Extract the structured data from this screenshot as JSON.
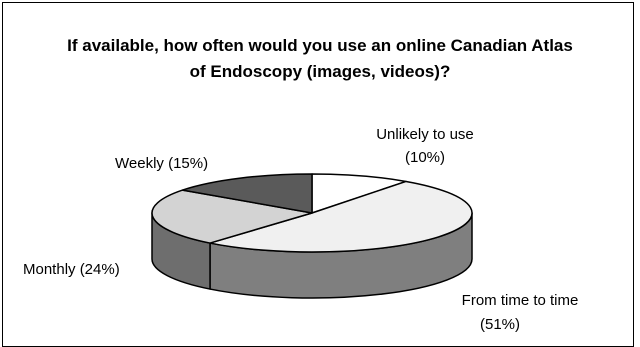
{
  "chart_data": {
    "type": "pie",
    "title_line1": "If available, how often would you use an online Canadian Atlas",
    "title_line2": "of Endoscopy (images, videos)?",
    "slices": [
      {
        "label_line1": "Unlikely to use",
        "label_line2": "(10%)",
        "value": 10,
        "color": "#ffffff",
        "side_color": "#e6e6e6"
      },
      {
        "label_line1": "From time to time",
        "label_line2": "(51%)",
        "value": 51,
        "color": "#f0f0f0",
        "side_color": "#7f7f7f"
      },
      {
        "label_line1": "Monthly (24%)",
        "label_line2": "",
        "value": 24,
        "color": "#d3d3d3",
        "side_color": "#6e6e6e"
      },
      {
        "label_line1": "Weekly (15%)",
        "label_line2": "",
        "value": 15,
        "color": "#5a5a5a",
        "side_color": "#3c3c3c"
      }
    ]
  }
}
